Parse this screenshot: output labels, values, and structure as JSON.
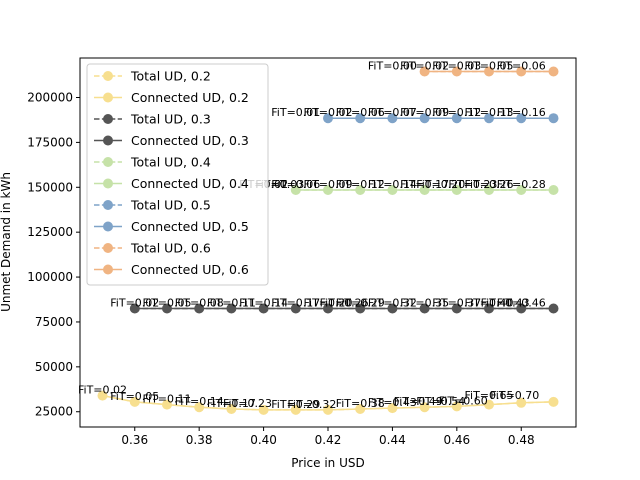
{
  "chart_data": {
    "type": "line",
    "title": "",
    "xlabel": "Price in USD",
    "ylabel": "Unmet Demand in kWh",
    "xlim": [
      0.343,
      0.497
    ],
    "ylim": [
      16500,
      222000
    ],
    "xticks": [
      0.36,
      0.38,
      0.4,
      0.42,
      0.44,
      0.46,
      0.48
    ],
    "xtick_labels": [
      "0.36",
      "0.38",
      "0.40",
      "0.42",
      "0.44",
      "0.46",
      "0.48"
    ],
    "yticks": [
      25000,
      50000,
      75000,
      100000,
      125000,
      150000,
      175000,
      200000
    ],
    "ytick_labels": [
      "25000",
      "50000",
      "75000",
      "100000",
      "125000",
      "150000",
      "175000",
      "200000"
    ],
    "grid": false,
    "legend_position": "upper-left",
    "series": [
      {
        "name": "Total UD, 0.2",
        "style": "dashed",
        "color": "#f7df8f",
        "x": [
          0.35,
          0.36,
          0.37,
          0.38,
          0.39,
          0.4,
          0.41,
          0.42,
          0.43,
          0.44,
          0.45,
          0.46,
          0.47,
          0.48,
          0.49
        ],
        "y": [
          34000,
          30500,
          29000,
          27500,
          26500,
          26000,
          26000,
          26000,
          26500,
          27000,
          27500,
          28000,
          29000,
          30000,
          30500
        ]
      },
      {
        "name": "Connected UD, 0.2",
        "style": "solid",
        "color": "#f7df8f",
        "x": [
          0.35,
          0.36,
          0.37,
          0.38,
          0.39,
          0.4,
          0.41,
          0.42,
          0.43,
          0.44,
          0.45,
          0.46,
          0.47,
          0.48,
          0.49
        ],
        "y": [
          34000,
          30500,
          29000,
          27500,
          26500,
          26000,
          26000,
          26000,
          26500,
          27000,
          27500,
          28000,
          29000,
          30000,
          30500
        ]
      },
      {
        "name": "Total UD, 0.3",
        "style": "dashed",
        "color": "#555555",
        "x": [
          0.36,
          0.37,
          0.38,
          0.39,
          0.4,
          0.41,
          0.42,
          0.43,
          0.44,
          0.45,
          0.46,
          0.47,
          0.48,
          0.49
        ],
        "y": [
          82500,
          82500,
          82500,
          82500,
          82500,
          82500,
          82500,
          82500,
          82500,
          82500,
          82500,
          82500,
          82500,
          82500
        ]
      },
      {
        "name": "Connected UD, 0.3",
        "style": "solid",
        "color": "#555555",
        "x": [
          0.36,
          0.37,
          0.38,
          0.39,
          0.4,
          0.41,
          0.42,
          0.43,
          0.44,
          0.45,
          0.46,
          0.47,
          0.48,
          0.49
        ],
        "y": [
          82500,
          82500,
          82500,
          82500,
          82500,
          82500,
          82500,
          82500,
          82500,
          82500,
          82500,
          82500,
          82500,
          82500
        ]
      },
      {
        "name": "Total UD, 0.4",
        "style": "dashed",
        "color": "#c6e2a8",
        "x": [
          0.41,
          0.42,
          0.43,
          0.44,
          0.45,
          0.46,
          0.47,
          0.48,
          0.49
        ],
        "y": [
          148500,
          148500,
          148500,
          148500,
          148500,
          148500,
          148500,
          148500,
          148500
        ]
      },
      {
        "name": "Connected UD, 0.4",
        "style": "solid",
        "color": "#c6e2a8",
        "x": [
          0.41,
          0.42,
          0.43,
          0.44,
          0.45,
          0.46,
          0.47,
          0.48,
          0.49
        ],
        "y": [
          148500,
          148500,
          148500,
          148500,
          148500,
          148500,
          148500,
          148500,
          148500
        ]
      },
      {
        "name": "Total UD, 0.5",
        "style": "dashed",
        "color": "#7fa3c8",
        "x": [
          0.42,
          0.43,
          0.44,
          0.45,
          0.46,
          0.47,
          0.48,
          0.49
        ],
        "y": [
          188500,
          188500,
          188500,
          188500,
          188500,
          188500,
          188500,
          188500
        ]
      },
      {
        "name": "Connected UD, 0.5",
        "style": "solid",
        "color": "#7fa3c8",
        "x": [
          0.42,
          0.43,
          0.44,
          0.45,
          0.46,
          0.47,
          0.48,
          0.49
        ],
        "y": [
          188500,
          188500,
          188500,
          188500,
          188500,
          188500,
          188500,
          188500
        ]
      },
      {
        "name": "Total UD, 0.6",
        "style": "dashed",
        "color": "#f0b482",
        "x": [
          0.45,
          0.46,
          0.47,
          0.48,
          0.49
        ],
        "y": [
          214500,
          214500,
          214500,
          214500,
          214500
        ]
      },
      {
        "name": "Connected UD, 0.6",
        "style": "solid",
        "color": "#f0b482",
        "x": [
          0.45,
          0.46,
          0.47,
          0.48,
          0.49
        ],
        "y": [
          214500,
          214500,
          214500,
          214500,
          214500
        ]
      }
    ],
    "annotations": [
      {
        "text": "FiT=0.02",
        "x": 0.35,
        "y": 34000
      },
      {
        "text": "FiT=0.05",
        "x": 0.36,
        "y": 30500
      },
      {
        "text": "FiT=0.11",
        "x": 0.37,
        "y": 29000
      },
      {
        "text": "FiT=0.14",
        "x": 0.38,
        "y": 27500
      },
      {
        "text": "FiT=0.17",
        "x": 0.39,
        "y": 26500
      },
      {
        "text": "FiT=0.23",
        "x": 0.395,
        "y": 26500
      },
      {
        "text": "FiT=0.29",
        "x": 0.41,
        "y": 26000
      },
      {
        "text": "FiT=0.32",
        "x": 0.415,
        "y": 26000
      },
      {
        "text": "FiT=0.38",
        "x": 0.43,
        "y": 26500
      },
      {
        "text": "FiT=0.43",
        "x": 0.44,
        "y": 27000
      },
      {
        "text": "FiT=0.49",
        "x": 0.448,
        "y": 27500
      },
      {
        "text": "FiT=0.54",
        "x": 0.455,
        "y": 27500
      },
      {
        "text": "FiT=0.60",
        "x": 0.462,
        "y": 28000
      },
      {
        "text": "FiT=0.65",
        "x": 0.47,
        "y": 31000
      },
      {
        "text": "FiT=0.70",
        "x": 0.478,
        "y": 31000
      },
      {
        "text": "FiT=0.02",
        "x": 0.36,
        "y": 82500
      },
      {
        "text": "FiT=0.05",
        "x": 0.37,
        "y": 82500
      },
      {
        "text": "FiT=0.08",
        "x": 0.38,
        "y": 82500
      },
      {
        "text": "FiT=0.11",
        "x": 0.39,
        "y": 82500
      },
      {
        "text": "FiT=0.14",
        "x": 0.4,
        "y": 82500
      },
      {
        "text": "FiT=0.17",
        "x": 0.41,
        "y": 82500
      },
      {
        "text": "FiT=0.20",
        "x": 0.42,
        "y": 82500
      },
      {
        "text": "FiT=0.26",
        "x": 0.425,
        "y": 82500
      },
      {
        "text": "FiT=0.29",
        "x": 0.43,
        "y": 82500
      },
      {
        "text": "FiT=0.32",
        "x": 0.44,
        "y": 82500
      },
      {
        "text": "FiT=0.35",
        "x": 0.45,
        "y": 82500
      },
      {
        "text": "FiT=0.37",
        "x": 0.46,
        "y": 82500
      },
      {
        "text": "FiT=0.40",
        "x": 0.47,
        "y": 82500
      },
      {
        "text": "FiT=0.43",
        "x": 0.475,
        "y": 82500
      },
      {
        "text": "FiT=0.46",
        "x": 0.48,
        "y": 82500
      },
      {
        "text": "FiT=0.02",
        "x": 0.4,
        "y": 148500
      },
      {
        "text": "FiT=0.03",
        "x": 0.405,
        "y": 148500
      },
      {
        "text": "FiT=0.06",
        "x": 0.41,
        "y": 148500
      },
      {
        "text": "FiT=0.09",
        "x": 0.42,
        "y": 148500
      },
      {
        "text": "FiT=0.12",
        "x": 0.43,
        "y": 148500
      },
      {
        "text": "FiT=0.14",
        "x": 0.44,
        "y": 148500
      },
      {
        "text": "FiT=0.17",
        "x": 0.45,
        "y": 148500
      },
      {
        "text": "FiT=0.20",
        "x": 0.455,
        "y": 148500
      },
      {
        "text": "FiT=0.23",
        "x": 0.465,
        "y": 148500
      },
      {
        "text": "FiT=0.26",
        "x": 0.47,
        "y": 148500
      },
      {
        "text": "FiT=0.28",
        "x": 0.48,
        "y": 148500
      },
      {
        "text": "FiT=0.01",
        "x": 0.41,
        "y": 188500
      },
      {
        "text": "FiT=0.02",
        "x": 0.42,
        "y": 188500
      },
      {
        "text": "FiT=0.06",
        "x": 0.43,
        "y": 188500
      },
      {
        "text": "FiT=0.07",
        "x": 0.44,
        "y": 188500
      },
      {
        "text": "FiT=0.09",
        "x": 0.45,
        "y": 188500
      },
      {
        "text": "FiT=0.12",
        "x": 0.46,
        "y": 188500
      },
      {
        "text": "FiT=0.13",
        "x": 0.47,
        "y": 188500
      },
      {
        "text": "FiT=0.16",
        "x": 0.48,
        "y": 188500
      },
      {
        "text": "FiT=0.00",
        "x": 0.44,
        "y": 214500
      },
      {
        "text": "FiT=0.02",
        "x": 0.45,
        "y": 214500
      },
      {
        "text": "FiT=0.03",
        "x": 0.46,
        "y": 214500
      },
      {
        "text": "FiT=0.05",
        "x": 0.47,
        "y": 214500
      },
      {
        "text": "FiT=0.06",
        "x": 0.48,
        "y": 214500
      }
    ]
  }
}
